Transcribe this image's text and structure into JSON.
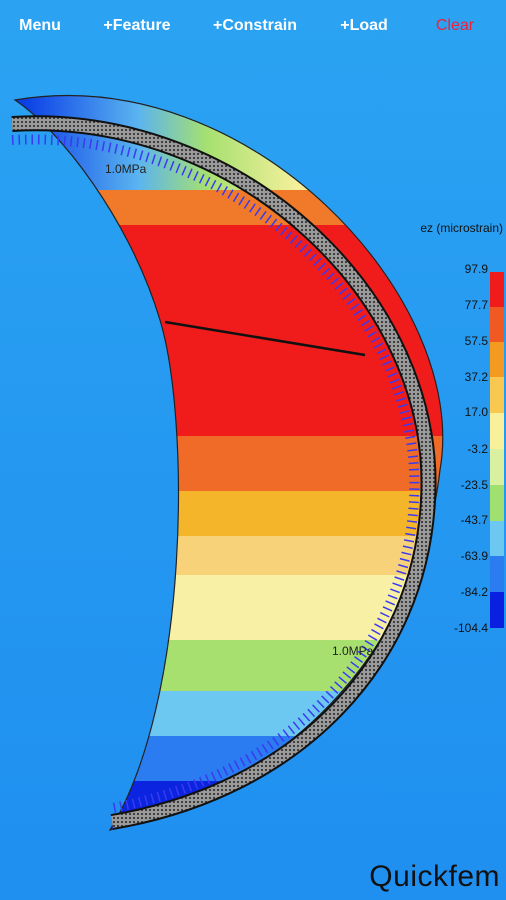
{
  "menu": [
    "Menu",
    "+Feature",
    "+Constrain",
    "+Load",
    "Clear"
  ],
  "legend": {
    "title": "ez (microstrain)",
    "labels": [
      "97.9",
      "77.7",
      "57.5",
      "37.2",
      "17.0",
      "-3.2",
      "-23.5",
      "-43.7",
      "-63.9",
      "-84.2",
      "-104.4"
    ]
  },
  "load_labels": [
    "1.0MPa",
    "1.0MPa"
  ],
  "logo": "Quickfem"
}
